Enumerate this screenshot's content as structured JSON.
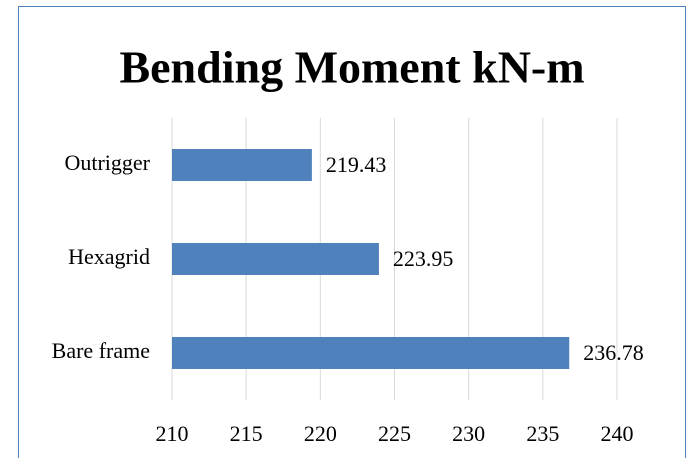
{
  "chart_data": {
    "type": "bar",
    "orientation": "horizontal",
    "title": "Bending Moment kN-m",
    "categories": [
      "Bare frame",
      "Hexagrid",
      "Outrigger"
    ],
    "values": [
      236.78,
      223.95,
      219.43
    ],
    "color": "#4f81bd",
    "xlim": [
      210,
      240
    ],
    "xticks": [
      210,
      215,
      220,
      225,
      230,
      235,
      240
    ],
    "grid": true
  }
}
